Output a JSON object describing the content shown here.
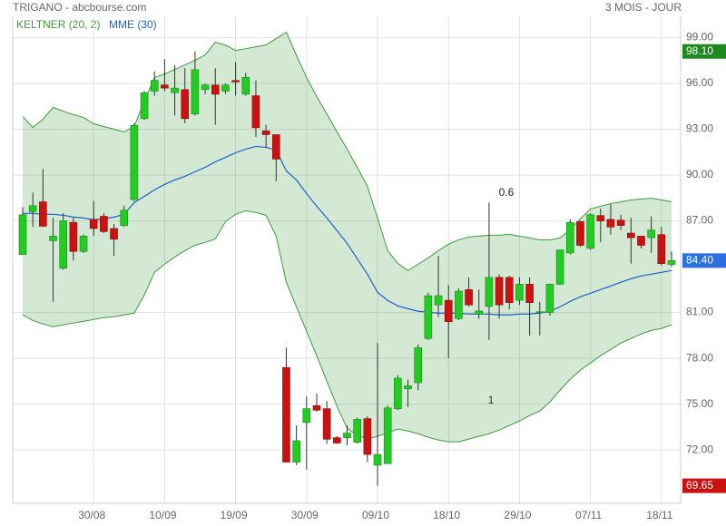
{
  "chart_data": {
    "type": "candlestick",
    "title": "TRIGANO - abcbourse.com",
    "subtitle": "3 MOIS - JOUR",
    "annotations": [
      "0.6",
      "1"
    ],
    "categories": [
      null,
      null,
      null,
      null,
      null,
      null,
      null,
      "30/08",
      null,
      null,
      null,
      null,
      null,
      null,
      "10/09",
      null,
      null,
      null,
      null,
      null,
      null,
      "19/09",
      null,
      null,
      null,
      null,
      null,
      null,
      "30/09",
      null,
      null,
      null,
      null,
      null,
      null,
      "09/10",
      null,
      null,
      null,
      null,
      null,
      null,
      "18/10",
      null,
      null,
      null,
      null,
      null,
      null,
      "29/10",
      null,
      null,
      null,
      null,
      null,
      null,
      "07/11",
      null,
      null,
      null,
      null,
      null,
      null,
      "18/11",
      null
    ],
    "candles": {
      "up_color": "#22cc22",
      "down_color": "#cc1111",
      "open": [
        84.8,
        87.6,
        88.25,
        85.7,
        83.9,
        86.9,
        85.0,
        87.1,
        87.3,
        86.5,
        86.7,
        88.4,
        93.7,
        95.5,
        95.9,
        95.4,
        95.6,
        94.0,
        95.6,
        95.9,
        95.5,
        96.2,
        95.3,
        95.2,
        92.9,
        92.65,
        77.4,
        71.2,
        73.8,
        74.9,
        74.7,
        72.8,
        72.8,
        72.5,
        74.05,
        71.0,
        71.1,
        74.7,
        76.0,
        76.4,
        79.3,
        81.5,
        81.8,
        80.6,
        82.5,
        80.9,
        81.4,
        83.3,
        83.3,
        81.8,
        82.85,
        81.0,
        81.0,
        82.85,
        84.9,
        86.95,
        85.2,
        87.35,
        87.1,
        87.05,
        86.2,
        86.0,
        85.9,
        86.1,
        84.15
      ],
      "high": [
        87.9,
        88.85,
        90.4,
        87.2,
        87.5,
        87.2,
        86.1,
        88.3,
        87.5,
        86.8,
        88.0,
        93.4,
        95.5,
        96.8,
        97.6,
        97.2,
        97.0,
        98.1,
        96.0,
        97.0,
        96.0,
        97.4,
        96.7,
        96.2,
        93.3,
        92.65,
        78.7,
        73.6,
        75.5,
        75.7,
        75.2,
        72.9,
        73.6,
        74.1,
        74.2,
        79.0,
        74.9,
        76.9,
        76.6,
        78.9,
        82.3,
        84.7,
        82.8,
        82.6,
        83.3,
        82.5,
        88.2,
        83.5,
        83.4,
        83.3,
        83.3,
        81.7,
        82.9,
        85.1,
        87.1,
        87.0,
        87.5,
        87.8,
        88.1,
        87.4,
        87.2,
        86.0,
        87.3,
        86.6,
        85.0
      ],
      "low": [
        84.8,
        86.6,
        86.6,
        81.7,
        83.8,
        84.4,
        84.9,
        86.0,
        86.2,
        84.7,
        86.6,
        88.3,
        93.6,
        95.2,
        95.5,
        93.9,
        93.4,
        93.9,
        95.3,
        93.3,
        95.3,
        95.2,
        95.2,
        92.5,
        91.8,
        89.6,
        71.2,
        71.0,
        70.7,
        74.5,
        72.4,
        72.4,
        72.3,
        72.4,
        71.2,
        69.65,
        71.1,
        74.6,
        74.8,
        75.9,
        79.2,
        80.7,
        78.0,
        80.5,
        81.4,
        80.6,
        79.2,
        80.6,
        81.2,
        81.5,
        79.5,
        79.5,
        80.8,
        82.8,
        84.8,
        85.3,
        85.1,
        85.6,
        86.1,
        86.4,
        84.2,
        85.2,
        84.9,
        84.1,
        84.0
      ],
      "close": [
        87.4,
        88.0,
        86.65,
        86.0,
        87.0,
        85.0,
        86.0,
        86.5,
        86.3,
        85.8,
        87.7,
        93.25,
        95.4,
        96.2,
        95.7,
        95.7,
        93.7,
        96.9,
        95.9,
        95.3,
        95.9,
        96.1,
        96.4,
        93.1,
        92.65,
        91.05,
        71.2,
        72.6,
        74.7,
        74.6,
        72.7,
        72.45,
        73.1,
        74.0,
        71.7,
        71.7,
        74.75,
        76.7,
        76.2,
        78.7,
        82.1,
        82.1,
        80.4,
        82.4,
        81.5,
        81.1,
        83.3,
        81.5,
        81.65,
        82.85,
        81.65,
        81.05,
        82.85,
        85.1,
        86.9,
        85.4,
        87.4,
        87.0,
        86.6,
        86.7,
        85.9,
        85.4,
        86.4,
        84.2,
        84.4
      ]
    },
    "series": [
      {
        "name": "KELTNER (20, 2)",
        "color": "#3d9a3d",
        "upper": [
          93.84,
          93.12,
          93.66,
          94.43,
          94.19,
          93.96,
          93.78,
          93.36,
          93.18,
          93.01,
          92.83,
          93.18,
          94.85,
          96.39,
          96.62,
          96.92,
          97.22,
          97.52,
          97.87,
          98.7,
          98.52,
          98.16,
          98.28,
          98.4,
          98.52,
          98.94,
          99.36,
          97.84,
          96.39,
          95.14,
          94.01,
          92.83,
          91.7,
          90.51,
          89.27,
          87.19,
          85.05,
          84.22,
          83.75,
          84.16,
          84.58,
          85.05,
          85.47,
          85.76,
          85.94,
          86.0,
          86.06,
          86.06,
          86.12,
          86.0,
          85.88,
          85.76,
          85.76,
          85.88,
          86.42,
          87.13,
          87.78,
          87.96,
          88.13,
          88.25,
          88.37,
          88.43,
          88.49,
          88.37,
          88.25
        ],
        "lower": [
          80.84,
          80.48,
          80.25,
          80.07,
          80.19,
          80.31,
          80.42,
          80.54,
          80.66,
          80.72,
          80.84,
          80.96,
          82.15,
          83.63,
          84.16,
          84.64,
          85.05,
          85.41,
          85.59,
          85.82,
          86.95,
          87.43,
          87.66,
          87.55,
          87.37,
          86.0,
          82.98,
          81.37,
          79.77,
          78.17,
          76.51,
          74.85,
          73.42,
          72.95,
          72.71,
          72.89,
          73.13,
          73.36,
          73.24,
          73.06,
          72.83,
          72.65,
          72.53,
          72.53,
          72.71,
          72.89,
          73.06,
          73.3,
          73.6,
          73.89,
          74.25,
          74.55,
          75.14,
          75.91,
          76.63,
          77.22,
          77.69,
          78.17,
          78.58,
          79.0,
          79.3,
          79.59,
          79.83,
          79.95,
          80.19
        ]
      },
      {
        "name": "MME (30)",
        "color": "#1f5fcc",
        "values": [
          87.49,
          87.49,
          87.43,
          87.43,
          87.37,
          87.25,
          87.19,
          87.07,
          87.13,
          87.25,
          87.43,
          88.2,
          88.61,
          89.03,
          89.39,
          89.68,
          89.92,
          90.22,
          90.51,
          90.87,
          91.16,
          91.46,
          91.7,
          91.88,
          91.82,
          91.64,
          90.28,
          89.68,
          88.79,
          87.96,
          87.19,
          86.36,
          85.53,
          84.52,
          83.51,
          82.32,
          81.79,
          81.43,
          81.25,
          81.08,
          81.02,
          80.96,
          80.96,
          80.96,
          80.9,
          80.9,
          80.9,
          80.84,
          80.84,
          80.9,
          80.9,
          80.96,
          81.08,
          81.37,
          81.73,
          82.03,
          82.26,
          82.5,
          82.74,
          82.98,
          83.21,
          83.39,
          83.51,
          83.63,
          83.75
        ]
      }
    ],
    "ylim": [
      68.5,
      100.4
    ],
    "yticks": [
      {
        "value": 72,
        "label": "72.00"
      },
      {
        "value": 75,
        "label": "75.00"
      },
      {
        "value": 78,
        "label": "78.00"
      },
      {
        "value": 81,
        "label": "81.00"
      },
      {
        "value": 87,
        "label": "87.00"
      },
      {
        "value": 90,
        "label": "90.00"
      },
      {
        "value": 93,
        "label": "93.00"
      },
      {
        "value": 96,
        "label": "96.00"
      },
      {
        "value": 99,
        "label": "99.00"
      }
    ],
    "grid": true,
    "price_tags": [
      {
        "value": 98.1,
        "label": "98.10",
        "color": "#1e8a1e"
      },
      {
        "value": 84.4,
        "label": "84.40",
        "color": "#2b6fe0"
      },
      {
        "value": 69.65,
        "label": "69.65",
        "color": "#cc1111"
      }
    ]
  }
}
